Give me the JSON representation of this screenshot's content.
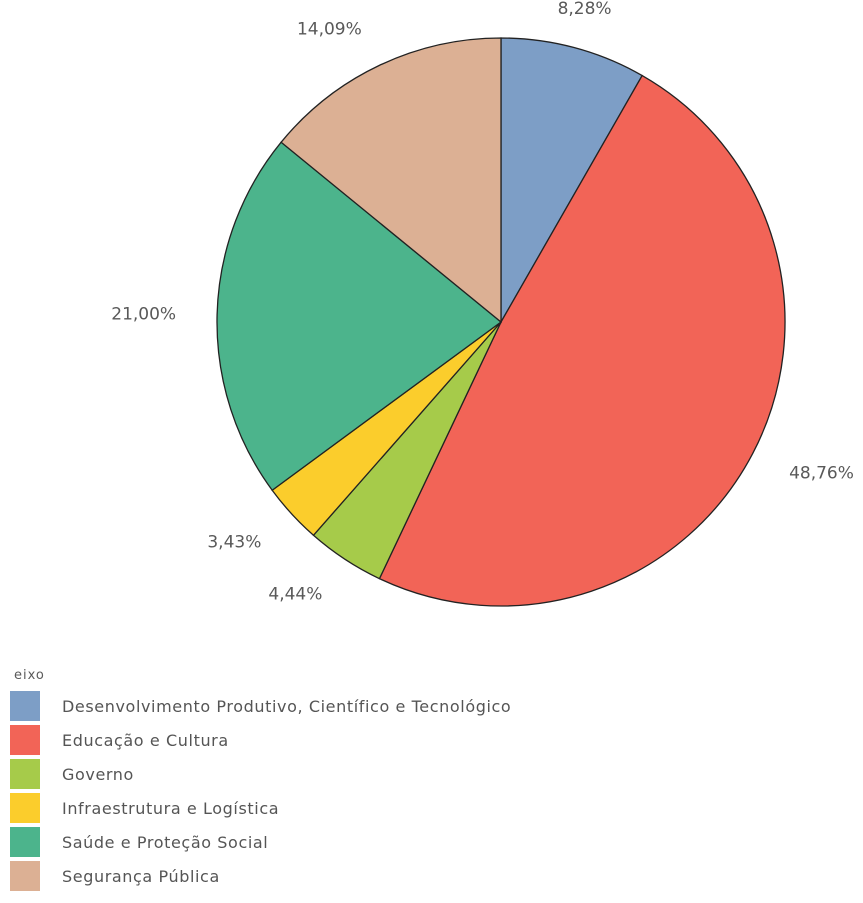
{
  "chart_data": {
    "type": "pie",
    "legend_title": "eixo",
    "legend_position": "bottom-left",
    "slices": [
      {
        "label": "Desenvolvimento Produtivo, Científico e Tecnológico",
        "value": 8.28,
        "value_label": "8,28%",
        "color": "#7d9ec6"
      },
      {
        "label": "Educação e Cultura",
        "value": 48.76,
        "value_label": "48,76%",
        "color": "#f26457"
      },
      {
        "label": "Governo",
        "value": 4.44,
        "value_label": "4,44%",
        "color": "#a6cb4a"
      },
      {
        "label": "Infraestrutura e Logística",
        "value": 3.43,
        "value_label": "3,43%",
        "color": "#fbcd2c"
      },
      {
        "label": "Saúde e Proteção Social",
        "value": 21.0,
        "value_label": "21,00%",
        "color": "#4cb48c"
      },
      {
        "label": "Segurança Pública",
        "value": 14.09,
        "value_label": "14,09%",
        "color": "#dcb094"
      }
    ]
  }
}
